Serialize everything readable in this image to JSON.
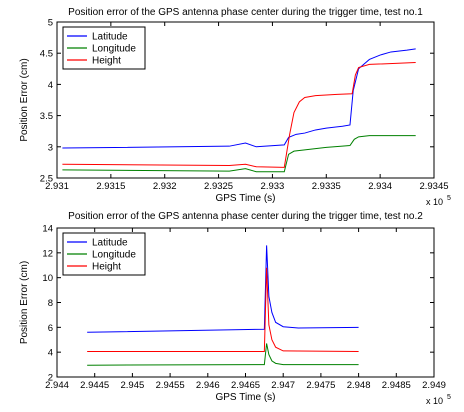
{
  "chart_data": [
    {
      "type": "line",
      "title": "Position error of the GPS antenna phase center during the trigger time, test no.1",
      "xlabel": "GPS Time (s)",
      "ylabel": "Position Error (cm)",
      "x_exponent_label": "x 10",
      "x_exponent_power": "5",
      "xlim": [
        2.931,
        2.9345
      ],
      "ylim": [
        2.5,
        5
      ],
      "xticks": [
        2.931,
        2.9315,
        2.932,
        2.9325,
        2.933,
        2.9335,
        2.934,
        2.9345
      ],
      "xtick_labels": [
        "2.931",
        "2.9315",
        "2.932",
        "2.9325",
        "2.933",
        "2.9335",
        "2.934",
        "2.9345"
      ],
      "yticks": [
        2.5,
        3,
        3.5,
        4,
        4.5,
        5
      ],
      "ytick_labels": [
        "2.5",
        "3",
        "3.5",
        "4",
        "4.5",
        "5"
      ],
      "legend_position": "top-left",
      "series": [
        {
          "name": "Latitude",
          "color": "#0000ff",
          "points": [
            [
              2.93105,
              2.98
            ],
            [
              2.9326,
              3.01
            ],
            [
              2.93275,
              3.06
            ],
            [
              2.93285,
              3.0
            ],
            [
              2.93311,
              3.03
            ],
            [
              2.93315,
              3.15
            ],
            [
              2.93322,
              3.2
            ],
            [
              2.9333,
              3.22
            ],
            [
              2.9334,
              3.27
            ],
            [
              2.9335,
              3.3
            ],
            [
              2.93365,
              3.33
            ],
            [
              2.93372,
              3.35
            ],
            [
              2.93375,
              3.9
            ],
            [
              2.9338,
              4.25
            ],
            [
              2.9339,
              4.4
            ],
            [
              2.934,
              4.47
            ],
            [
              2.9341,
              4.52
            ],
            [
              2.93425,
              4.55
            ],
            [
              2.93433,
              4.57
            ]
          ]
        },
        {
          "name": "Longitude",
          "color": "#008000",
          "points": [
            [
              2.93105,
              2.63
            ],
            [
              2.9326,
              2.61
            ],
            [
              2.93275,
              2.65
            ],
            [
              2.93285,
              2.6
            ],
            [
              2.93311,
              2.6
            ],
            [
              2.93315,
              2.88
            ],
            [
              2.9332,
              2.93
            ],
            [
              2.9333,
              2.95
            ],
            [
              2.9334,
              2.97
            ],
            [
              2.9335,
              2.99
            ],
            [
              2.93365,
              3.01
            ],
            [
              2.93372,
              3.02
            ],
            [
              2.93376,
              3.12
            ],
            [
              2.9338,
              3.16
            ],
            [
              2.9339,
              3.18
            ],
            [
              2.93433,
              3.18
            ]
          ]
        },
        {
          "name": "Height",
          "color": "#ff0000",
          "points": [
            [
              2.93105,
              2.72
            ],
            [
              2.9326,
              2.7
            ],
            [
              2.93275,
              2.72
            ],
            [
              2.93285,
              2.68
            ],
            [
              2.93311,
              2.67
            ],
            [
              2.93316,
              3.2
            ],
            [
              2.9332,
              3.55
            ],
            [
              2.93325,
              3.72
            ],
            [
              2.9333,
              3.79
            ],
            [
              2.9334,
              3.82
            ],
            [
              2.9336,
              3.84
            ],
            [
              2.93374,
              3.85
            ],
            [
              2.93377,
              4.15
            ],
            [
              2.9338,
              4.27
            ],
            [
              2.9339,
              4.32
            ],
            [
              2.93433,
              4.35
            ]
          ]
        }
      ]
    },
    {
      "type": "line",
      "title": "Position error of the GPS antenna phase center during the trigger time, test no.2",
      "xlabel": "GPS Time (s)",
      "ylabel": "Position Error (cm)",
      "x_exponent_label": "x 10",
      "x_exponent_power": "5",
      "xlim": [
        2.944,
        2.949
      ],
      "ylim": [
        2,
        14
      ],
      "xticks": [
        2.944,
        2.9445,
        2.945,
        2.9455,
        2.946,
        2.9465,
        2.947,
        2.9475,
        2.948,
        2.9485,
        2.949
      ],
      "xtick_labels": [
        "2.944",
        "2.9445",
        "2.945",
        "2.9455",
        "2.946",
        "2.9465",
        "2.947",
        "2.9475",
        "2.948",
        "2.9485",
        "2.949"
      ],
      "yticks": [
        2,
        4,
        6,
        8,
        10,
        12,
        14
      ],
      "ytick_labels": [
        "2",
        "4",
        "6",
        "8",
        "10",
        "12",
        "14"
      ],
      "legend_position": "top-left",
      "series": [
        {
          "name": "Latitude",
          "color": "#0000ff",
          "points": [
            [
              2.9444,
              5.6
            ],
            [
              2.94675,
              5.85
            ],
            [
              2.94678,
              12.6
            ],
            [
              2.94681,
              8.5
            ],
            [
              2.94685,
              7.2
            ],
            [
              2.9469,
              6.4
            ],
            [
              2.947,
              6.05
            ],
            [
              2.9472,
              5.95
            ],
            [
              2.948,
              6.0
            ]
          ]
        },
        {
          "name": "Longitude",
          "color": "#008000",
          "points": [
            [
              2.9444,
              2.95
            ],
            [
              2.94675,
              3.0
            ],
            [
              2.94678,
              4.7
            ],
            [
              2.94681,
              3.8
            ],
            [
              2.94685,
              3.3
            ],
            [
              2.9469,
              3.1
            ],
            [
              2.947,
              3.0
            ],
            [
              2.948,
              3.0
            ]
          ]
        },
        {
          "name": "Height",
          "color": "#ff0000",
          "points": [
            [
              2.9444,
              4.05
            ],
            [
              2.94675,
              4.05
            ],
            [
              2.94678,
              10.8
            ],
            [
              2.94681,
              6.2
            ],
            [
              2.94685,
              5.0
            ],
            [
              2.9469,
              4.4
            ],
            [
              2.947,
              4.1
            ],
            [
              2.948,
              4.05
            ]
          ]
        }
      ]
    }
  ]
}
